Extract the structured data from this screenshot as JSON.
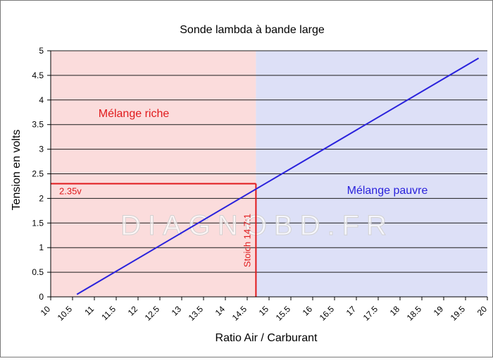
{
  "chart_data": {
    "type": "line",
    "title": "Sonde lambda à bande large",
    "xlabel": "Ratio Air / Carburant",
    "ylabel": "Tension en volts",
    "xlim": [
      10,
      20
    ],
    "ylim": [
      0,
      5
    ],
    "x_ticks": [
      "10",
      "10.5",
      "11",
      "11.5",
      "12",
      "12.5",
      "13",
      "13.5",
      "14",
      "14.5",
      "15",
      "15.5",
      "16",
      "16.5",
      "17",
      "17.5",
      "18",
      "18.5",
      "19",
      "19.5",
      "20"
    ],
    "y_ticks": [
      "0",
      "0.5",
      "1",
      "1.5",
      "2",
      "2.5",
      "3",
      "3.5",
      "4",
      "4.5",
      "5"
    ],
    "grid": "horizontal",
    "series": [
      {
        "x": [
          10.6,
          19.8
        ],
        "y": [
          0.05,
          4.85
        ],
        "color": "#2a22dc"
      }
    ],
    "regions": [
      {
        "label": "Mélange riche",
        "x_range": [
          10,
          14.7
        ],
        "color": "#fbdcdc",
        "label_color": "#e0191b"
      },
      {
        "label": "Mélange pauvre",
        "x_range": [
          14.7,
          20
        ],
        "color": "#dde0f7",
        "label_color": "#2a22dc"
      }
    ],
    "annotations": [
      {
        "text": "Stoich 14.7:1",
        "x": 14.7,
        "color": "#e0191b"
      },
      {
        "text": "2.35v",
        "y": 2.3,
        "color": "#e0191b"
      }
    ],
    "watermark": "DIAGNOBD.FR"
  }
}
